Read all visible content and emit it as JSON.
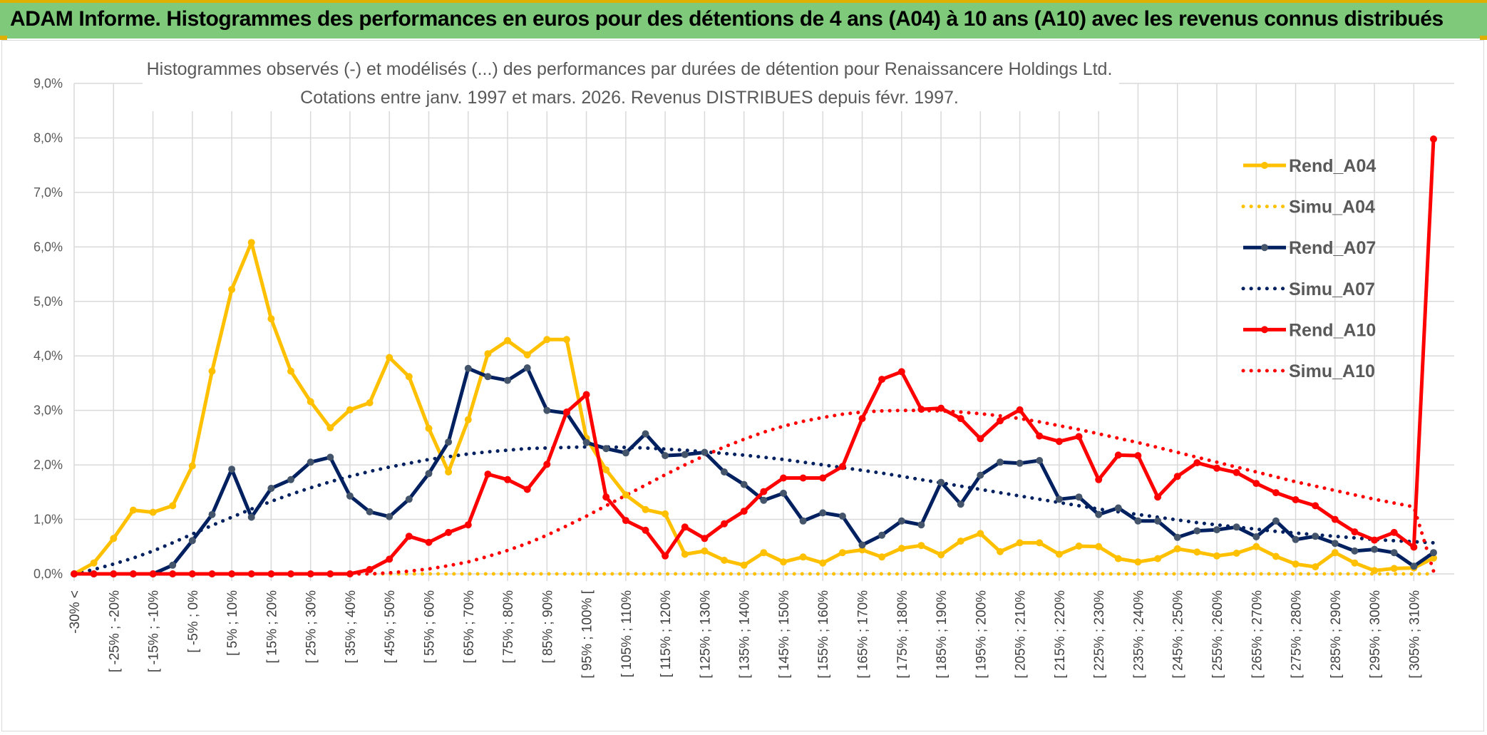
{
  "banner": {
    "title": "ADAM Informe. Histogrammes des performances en euros pour des détentions de 4 ans (A04) à 10 ans (A10) avec les revenus connus distribués"
  },
  "colors": {
    "banner_bg": "#7ec97a",
    "accent": "#e0b000",
    "A04": "#FFC000",
    "A07": "#002060",
    "A10": "#FF0000"
  },
  "chart_data": {
    "type": "line",
    "title_line1": "Histogrammes observés (-) et modélisés (...) des performances par durées de détention pour Renaissancere Holdings Ltd.",
    "title_line2": "Cotations entre janv. 1997 et mars. 2026. Revenus DISTRIBUES depuis févr. 1997.",
    "xlabel": "",
    "ylabel": "",
    "ylim": [
      0,
      9
    ],
    "yticks": [
      0,
      1,
      2,
      3,
      4,
      5,
      6,
      7,
      8,
      9
    ],
    "ytick_labels": [
      "0,0%",
      "1,0%",
      "2,0%",
      "3,0%",
      "4,0%",
      "5,0%",
      "6,0%",
      "7,0%",
      "8,0%",
      "9,0%"
    ],
    "grid": true,
    "legend_position": "right",
    "n_categories": 70,
    "x_tick_labels": [
      "-30% <",
      "[ -25% ; -20%",
      "[ -15% ; -10%",
      "[ -5% ; 0%",
      "[ 5% ; 10%",
      "[ 15% ; 20%",
      "[ 25% ; 30%",
      "[ 35% ; 40%",
      "[ 45% ; 50%",
      "[ 55% ; 60%",
      "[ 65% ; 70%",
      "[ 75% ; 80%",
      "[ 85% ; 90%",
      "[ 95% ; 100% [",
      "[ 105% ; 110%",
      "[ 115% ; 120%",
      "[ 125% ; 130%",
      "[ 135% ; 140%",
      "[ 145% ; 150%",
      "[ 155% ; 160%",
      "[ 165% ; 170%",
      "[ 175% ; 180%",
      "[ 185% ; 190%",
      "[ 195% ; 200%",
      "[ 205% ; 210%",
      "[ 215% ; 220%",
      "[ 225% ; 230%",
      "[ 235% ; 240%",
      "[ 245% ; 250%",
      "[ 255% ; 260%",
      "[ 265% ; 270%",
      "[ 275% ; 280%",
      "[ 285% ; 290%",
      "[ 295% ; 300%",
      "[ 305% ; 310%"
    ],
    "series": [
      {
        "name": "Rend_A04",
        "style": "solid",
        "color": "#FFC000",
        "values": [
          0.0,
          0.2,
          0.65,
          1.17,
          1.13,
          1.25,
          1.98,
          3.72,
          5.22,
          6.08,
          4.68,
          3.72,
          3.16,
          2.68,
          3.01,
          3.14,
          3.97,
          3.62,
          2.67,
          1.87,
          2.83,
          4.04,
          4.28,
          4.02,
          4.3,
          4.3,
          2.49,
          1.91,
          1.45,
          1.18,
          1.1,
          0.36,
          0.42,
          0.25,
          0.16,
          0.39,
          0.22,
          0.31,
          0.2,
          0.39,
          0.44,
          0.31,
          0.47,
          0.52,
          0.35,
          0.6,
          0.74,
          0.41,
          0.57,
          0.57,
          0.36,
          0.51,
          0.5,
          0.28,
          0.22,
          0.28,
          0.46,
          0.4,
          0.33,
          0.38,
          0.5,
          0.32,
          0.18,
          0.13,
          0.39,
          0.2,
          0.06,
          0.1,
          0.11,
          0.29
        ]
      },
      {
        "name": "Simu_A04",
        "style": "dotted",
        "color": "#FFC000",
        "values": [
          0.0,
          0.0,
          0.0,
          0.0,
          0.0,
          0.0,
          0.0,
          0.0,
          0.0,
          0.0,
          0.0,
          0.0,
          0.0,
          0.0,
          0.0,
          0.0,
          0.0,
          0.0,
          0.0,
          0.0,
          0.0,
          0.0,
          0.0,
          0.0,
          0.0,
          0.0,
          0.0,
          0.0,
          0.0,
          0.0,
          0.0,
          0.0,
          0.0,
          0.0,
          0.0,
          0.0,
          0.0,
          0.0,
          0.0,
          0.0,
          0.0,
          0.0,
          0.0,
          0.0,
          0.0,
          0.0,
          0.0,
          0.0,
          0.0,
          0.0,
          0.0,
          0.0,
          0.0,
          0.0,
          0.0,
          0.0,
          0.0,
          0.0,
          0.0,
          0.0,
          0.0,
          0.0,
          0.0,
          0.0,
          0.0,
          0.0,
          0.0,
          0.0,
          0.0,
          0.0
        ]
      },
      {
        "name": "Rend_A07",
        "style": "solid",
        "color": "#002060",
        "values": [
          0.0,
          0.0,
          0.0,
          0.0,
          0.0,
          0.16,
          0.61,
          1.09,
          1.92,
          1.04,
          1.57,
          1.73,
          2.05,
          2.14,
          1.43,
          1.14,
          1.05,
          1.37,
          1.84,
          2.42,
          3.77,
          3.62,
          3.55,
          3.78,
          3.0,
          2.95,
          2.41,
          2.3,
          2.22,
          2.57,
          2.17,
          2.19,
          2.23,
          1.87,
          1.64,
          1.35,
          1.48,
          0.97,
          1.12,
          1.06,
          0.53,
          0.71,
          0.97,
          0.9,
          1.68,
          1.28,
          1.81,
          2.05,
          2.03,
          2.08,
          1.37,
          1.41,
          1.09,
          1.21,
          0.97,
          0.97,
          0.67,
          0.79,
          0.81,
          0.86,
          0.68,
          0.97,
          0.63,
          0.69,
          0.56,
          0.42,
          0.45,
          0.39,
          0.14,
          0.39
        ]
      },
      {
        "name": "Simu_A07",
        "style": "dotted",
        "color": "#002060",
        "values": [
          0.0,
          0.08,
          0.18,
          0.29,
          0.42,
          0.57,
          0.73,
          0.89,
          1.04,
          1.19,
          1.33,
          1.46,
          1.58,
          1.69,
          1.79,
          1.88,
          1.96,
          2.03,
          2.1,
          2.15,
          2.2,
          2.24,
          2.27,
          2.3,
          2.31,
          2.32,
          2.33,
          2.33,
          2.32,
          2.31,
          2.29,
          2.27,
          2.24,
          2.21,
          2.18,
          2.14,
          2.1,
          2.05,
          2.0,
          1.95,
          1.9,
          1.85,
          1.79,
          1.73,
          1.67,
          1.61,
          1.55,
          1.49,
          1.43,
          1.37,
          1.31,
          1.25,
          1.19,
          1.14,
          1.09,
          1.04,
          0.99,
          0.94,
          0.9,
          0.86,
          0.82,
          0.78,
          0.75,
          0.72,
          0.69,
          0.66,
          0.63,
          0.61,
          0.59,
          0.57
        ]
      },
      {
        "name": "Rend_A10",
        "style": "solid",
        "color": "#FF0000",
        "values": [
          0.0,
          0.0,
          0.0,
          0.0,
          0.0,
          0.0,
          0.0,
          0.0,
          0.0,
          0.0,
          0.0,
          0.0,
          0.0,
          0.0,
          0.0,
          0.08,
          0.27,
          0.69,
          0.58,
          0.76,
          0.9,
          1.83,
          1.73,
          1.55,
          2.01,
          2.97,
          3.29,
          1.41,
          0.98,
          0.8,
          0.33,
          0.86,
          0.65,
          0.92,
          1.15,
          1.51,
          1.76,
          1.76,
          1.76,
          1.97,
          2.85,
          3.57,
          3.71,
          3.02,
          3.04,
          2.85,
          2.48,
          2.81,
          3.01,
          2.53,
          2.43,
          2.52,
          1.73,
          2.18,
          2.17,
          1.41,
          1.79,
          2.04,
          1.94,
          1.86,
          1.66,
          1.49,
          1.36,
          1.25,
          1.0,
          0.77,
          0.62,
          0.76,
          0.49,
          7.98
        ]
      },
      {
        "name": "Simu_A10",
        "style": "dotted",
        "color": "#FF0000",
        "values": [
          0.0,
          0.0,
          0.0,
          0.0,
          0.0,
          0.0,
          0.0,
          0.0,
          0.0,
          0.0,
          0.0,
          0.0,
          0.0,
          0.0,
          0.0,
          0.0,
          0.02,
          0.05,
          0.09,
          0.15,
          0.22,
          0.32,
          0.43,
          0.56,
          0.71,
          0.88,
          1.06,
          1.25,
          1.44,
          1.63,
          1.82,
          2.0,
          2.17,
          2.33,
          2.47,
          2.6,
          2.71,
          2.8,
          2.87,
          2.93,
          2.97,
          2.99,
          3.0,
          3.0,
          2.99,
          2.97,
          2.94,
          2.9,
          2.85,
          2.79,
          2.72,
          2.65,
          2.57,
          2.49,
          2.41,
          2.32,
          2.23,
          2.14,
          2.05,
          1.96,
          1.87,
          1.78,
          1.69,
          1.61,
          1.53,
          1.45,
          1.37,
          1.3,
          1.23,
          0.05
        ]
      }
    ]
  }
}
